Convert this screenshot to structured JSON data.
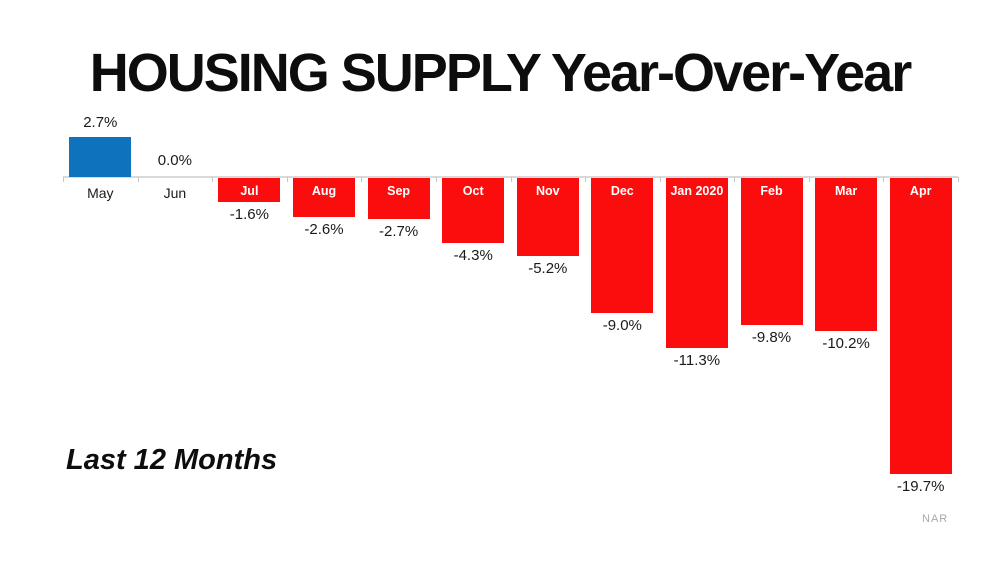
{
  "chart_data": {
    "type": "bar",
    "title": "HOUSING SUPPLY  Year-Over-Year",
    "categories": [
      "May",
      "Jun",
      "Jul",
      "Aug",
      "Sep",
      "Oct",
      "Nov",
      "Dec",
      "Jan 2020",
      "Feb",
      "Mar",
      "Apr"
    ],
    "values": [
      2.7,
      0.0,
      -1.6,
      -2.6,
      -2.7,
      -4.3,
      -5.2,
      -9.0,
      -11.3,
      -9.8,
      -10.2,
      -19.7
    ],
    "value_labels": [
      "2.7%",
      "0.0%",
      "-1.6%",
      "-2.6%",
      "-2.7%",
      "-4.3%",
      "-5.2%",
      "-9.0%",
      "-11.3%",
      "-9.8%",
      "-10.2%",
      "-19.7%"
    ],
    "annotation": "Last 12 Months",
    "source": "NAR",
    "positive_color": "#0e73bc",
    "negative_color": "#fc0d0d",
    "axis_color": "#d9d9d9",
    "tick_color": "#c6c6c6",
    "ylim": [
      -20,
      3
    ],
    "xlabel": "",
    "ylabel": "",
    "grid": false,
    "legend_position": "none"
  }
}
